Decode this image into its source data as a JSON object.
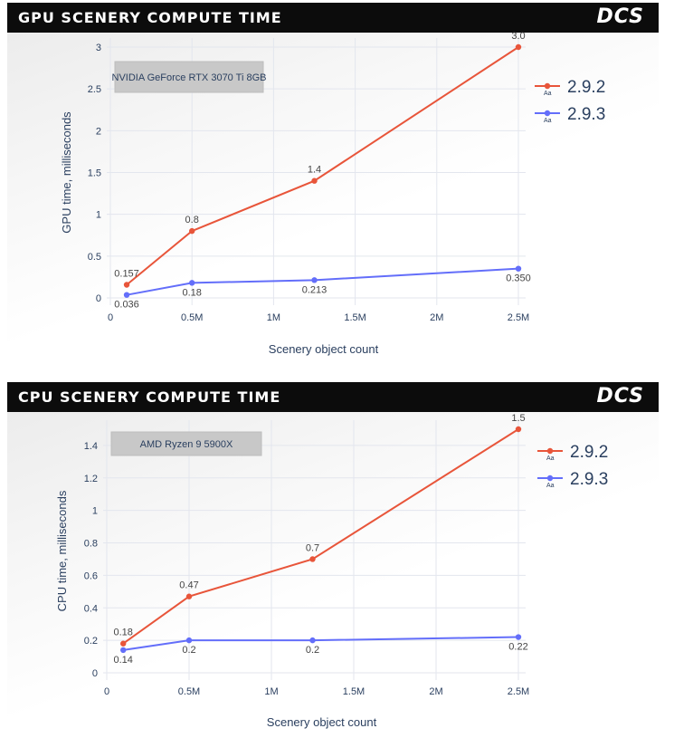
{
  "chart_data": [
    {
      "type": "line",
      "title": "GPU SCENERY COMPUTE TIME",
      "brand": "DCS",
      "annotation": "NVIDIA GeForce RTX 3070 Ti 8GB",
      "xlabel": "Scenery object count",
      "ylabel": "GPU time, milliseconds",
      "xlim": [
        0,
        2.5
      ],
      "ylim": [
        0,
        3
      ],
      "x_ticks": [
        0,
        0.5,
        1,
        1.5,
        2,
        2.5
      ],
      "x_tick_labels": [
        "0",
        "0.5M",
        "1M",
        "1.5M",
        "2M",
        "2.5M"
      ],
      "y_ticks": [
        0,
        0.5,
        1,
        1.5,
        2,
        2.5,
        3
      ],
      "y_tick_labels": [
        "0",
        "0.5",
        "1",
        "1.5",
        "2",
        "2.5",
        "3"
      ],
      "grid": true,
      "legend_position": "top-right",
      "legend_symbol": "Aa",
      "series": [
        {
          "name": "2.9.2",
          "color": "#e8553a",
          "x": [
            0.1,
            0.5,
            1.25,
            2.5
          ],
          "y": [
            0.157,
            0.8,
            1.4,
            3.0
          ],
          "labels": [
            "0.157",
            "0.8",
            "1.4",
            "3.0"
          ],
          "label_position": "above"
        },
        {
          "name": "2.9.3",
          "color": "#636efa",
          "x": [
            0.1,
            0.5,
            1.25,
            2.5
          ],
          "y": [
            0.036,
            0.18,
            0.213,
            0.35
          ],
          "labels": [
            "0.036",
            "0.18",
            "0.213",
            "0.350"
          ],
          "label_position": "below"
        }
      ]
    },
    {
      "type": "line",
      "title": "CPU SCENERY COMPUTE TIME",
      "brand": "DCS",
      "annotation": "AMD Ryzen 9 5900X",
      "xlabel": "Scenery object count",
      "ylabel": "CPU time, milliseconds",
      "xlim": [
        0,
        2.5
      ],
      "ylim": [
        0,
        1.5
      ],
      "x_ticks": [
        0,
        0.5,
        1,
        1.5,
        2,
        2.5
      ],
      "x_tick_labels": [
        "0",
        "0.5M",
        "1M",
        "1.5M",
        "2M",
        "2.5M"
      ],
      "y_ticks": [
        0,
        0.2,
        0.4,
        0.6,
        0.8,
        1,
        1.2,
        1.4
      ],
      "y_tick_labels": [
        "0",
        "0.2",
        "0.4",
        "0.6",
        "0.8",
        "1",
        "1.2",
        "1.4"
      ],
      "grid": true,
      "legend_position": "top-right",
      "legend_symbol": "Aa",
      "series": [
        {
          "name": "2.9.2",
          "color": "#e8553a",
          "x": [
            0.1,
            0.5,
            1.25,
            2.5
          ],
          "y": [
            0.18,
            0.47,
            0.7,
            1.5
          ],
          "labels": [
            "0.18",
            "0.47",
            "0.7",
            "1.5"
          ],
          "label_position": "above"
        },
        {
          "name": "2.9.3",
          "color": "#636efa",
          "x": [
            0.1,
            0.5,
            1.25,
            2.5
          ],
          "y": [
            0.14,
            0.2,
            0.2,
            0.22
          ],
          "labels": [
            "0.14",
            "0.2",
            "0.2",
            "0.22"
          ],
          "label_position": "below"
        }
      ]
    }
  ]
}
